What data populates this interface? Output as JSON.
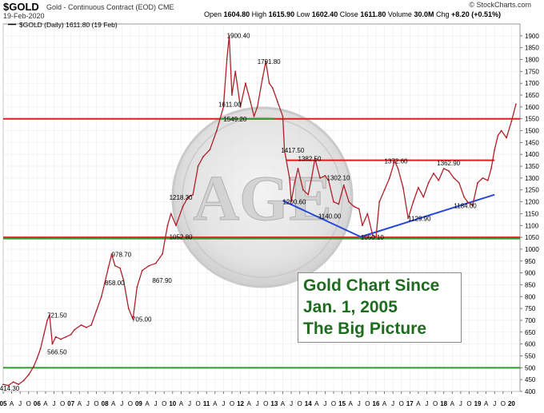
{
  "header": {
    "symbol": "$GOLD",
    "subtitle": "Gold - Continuous Contract (EOD)  CME",
    "date": "19-Feb-2020",
    "open_label": "Open",
    "open": "1604.80",
    "high_label": "High",
    "high": "1615.90",
    "low_label": "Low",
    "low": "1602.40",
    "close_label": "Close",
    "close": "1611.80",
    "volume_label": "Volume",
    "volume": "30.0M",
    "chg_label": "Chg",
    "chg": "+8.20 (+0.51%)",
    "brand": "© StockCharts.com"
  },
  "legend": "$GOLD (Daily) 1611.80 (19 Feb)",
  "callout": {
    "line1": "Gold Chart Since",
    "line2": "Jan. 1, 2005",
    "line3": "The Big Picture"
  },
  "watermark": "AGE",
  "colors": {
    "price": "#b0202a",
    "resistance": "#dd1f1f",
    "support": "#2f9a2f",
    "trend": "#2848d8",
    "callout_text": "#1f6b1f"
  },
  "chart_data": {
    "type": "line",
    "ylim": [
      400,
      1950
    ],
    "y_ticks": [
      400,
      450,
      500,
      550,
      600,
      650,
      700,
      750,
      800,
      850,
      900,
      950,
      1000,
      1050,
      1100,
      1150,
      1200,
      1250,
      1300,
      1350,
      1400,
      1450,
      1500,
      1550,
      1600,
      1650,
      1700,
      1750,
      1800,
      1850,
      1900
    ],
    "x_labels": [
      {
        "t": 2005.0,
        "label": "05",
        "bold": true
      },
      {
        "t": 2005.25,
        "label": "A"
      },
      {
        "t": 2005.5,
        "label": "J"
      },
      {
        "t": 2005.75,
        "label": "O"
      },
      {
        "t": 2006.0,
        "label": "06",
        "bold": true
      },
      {
        "t": 2006.25,
        "label": "A"
      },
      {
        "t": 2006.5,
        "label": "J"
      },
      {
        "t": 2006.75,
        "label": "O"
      },
      {
        "t": 2007.0,
        "label": "07",
        "bold": true
      },
      {
        "t": 2007.25,
        "label": "A"
      },
      {
        "t": 2007.5,
        "label": "J"
      },
      {
        "t": 2007.75,
        "label": "O"
      },
      {
        "t": 2008.0,
        "label": "08",
        "bold": true
      },
      {
        "t": 2008.25,
        "label": "A"
      },
      {
        "t": 2008.5,
        "label": "J"
      },
      {
        "t": 2008.75,
        "label": "O"
      },
      {
        "t": 2009.0,
        "label": "09",
        "bold": true
      },
      {
        "t": 2009.25,
        "label": "A"
      },
      {
        "t": 2009.5,
        "label": "J"
      },
      {
        "t": 2009.75,
        "label": "O"
      },
      {
        "t": 2010.0,
        "label": "10",
        "bold": true
      },
      {
        "t": 2010.25,
        "label": "A"
      },
      {
        "t": 2010.5,
        "label": "J"
      },
      {
        "t": 2010.75,
        "label": "O"
      },
      {
        "t": 2011.0,
        "label": "11",
        "bold": true
      },
      {
        "t": 2011.25,
        "label": "A"
      },
      {
        "t": 2011.5,
        "label": "J"
      },
      {
        "t": 2011.75,
        "label": "O"
      },
      {
        "t": 2012.0,
        "label": "12",
        "bold": true
      },
      {
        "t": 2012.25,
        "label": "A"
      },
      {
        "t": 2012.5,
        "label": "J"
      },
      {
        "t": 2012.75,
        "label": "O"
      },
      {
        "t": 2013.0,
        "label": "13",
        "bold": true
      },
      {
        "t": 2013.25,
        "label": "A"
      },
      {
        "t": 2013.5,
        "label": "J"
      },
      {
        "t": 2013.75,
        "label": "O"
      },
      {
        "t": 2014.0,
        "label": "14",
        "bold": true
      },
      {
        "t": 2014.25,
        "label": "A"
      },
      {
        "t": 2014.5,
        "label": "J"
      },
      {
        "t": 2014.75,
        "label": "O"
      },
      {
        "t": 2015.0,
        "label": "15",
        "bold": true
      },
      {
        "t": 2015.25,
        "label": "A"
      },
      {
        "t": 2015.5,
        "label": "J"
      },
      {
        "t": 2015.75,
        "label": "O"
      },
      {
        "t": 2016.0,
        "label": "16",
        "bold": true
      },
      {
        "t": 2016.25,
        "label": "A"
      },
      {
        "t": 2016.5,
        "label": "J"
      },
      {
        "t": 2016.75,
        "label": "O"
      },
      {
        "t": 2017.0,
        "label": "17",
        "bold": true
      },
      {
        "t": 2017.25,
        "label": "A"
      },
      {
        "t": 2017.5,
        "label": "J"
      },
      {
        "t": 2017.75,
        "label": "O"
      },
      {
        "t": 2018.0,
        "label": "18",
        "bold": true
      },
      {
        "t": 2018.25,
        "label": "A"
      },
      {
        "t": 2018.5,
        "label": "J"
      },
      {
        "t": 2018.75,
        "label": "O"
      },
      {
        "t": 2019.0,
        "label": "19",
        "bold": true
      },
      {
        "t": 2019.25,
        "label": "A"
      },
      {
        "t": 2019.5,
        "label": "J"
      },
      {
        "t": 2019.75,
        "label": "O"
      },
      {
        "t": 2020.0,
        "label": "20",
        "bold": true
      }
    ],
    "series": [
      {
        "x": [
          2005.0,
          2005.15,
          2005.3,
          2005.45,
          2005.6,
          2005.75,
          2005.9,
          2006.0,
          2006.1,
          2006.2,
          2006.3,
          2006.37,
          2006.45,
          2006.55,
          2006.7,
          2006.85,
          2007.0,
          2007.1,
          2007.3,
          2007.45,
          2007.6,
          2007.75,
          2007.9,
          2008.0,
          2008.1,
          2008.2,
          2008.3,
          2008.45,
          2008.55,
          2008.7,
          2008.83,
          2008.95,
          2009.1,
          2009.3,
          2009.5,
          2009.7,
          2009.85,
          2009.95,
          2010.1,
          2010.3,
          2010.45,
          2010.6,
          2010.75,
          2010.9,
          2011.1,
          2011.3,
          2011.5,
          2011.6,
          2011.67,
          2011.75,
          2011.85,
          2012.0,
          2012.15,
          2012.3,
          2012.4,
          2012.5,
          2012.65,
          2012.75,
          2012.85,
          2012.95,
          2013.1,
          2013.25,
          2013.3,
          2013.45,
          2013.5,
          2013.6,
          2013.7,
          2013.85,
          2014.0,
          2014.1,
          2014.2,
          2014.35,
          2014.5,
          2014.6,
          2014.75,
          2014.9,
          2015.05,
          2015.2,
          2015.35,
          2015.5,
          2015.6,
          2015.75,
          2015.9,
          2016.0,
          2016.1,
          2016.25,
          2016.4,
          2016.55,
          2016.65,
          2016.8,
          2016.95,
          2017.1,
          2017.25,
          2017.4,
          2017.55,
          2017.7,
          2017.85,
          2018.0,
          2018.15,
          2018.3,
          2018.45,
          2018.6,
          2018.7,
          2018.85,
          2019.0,
          2019.15,
          2019.3,
          2019.4,
          2019.5,
          2019.6,
          2019.7,
          2019.85,
          2020.0,
          2020.13
        ],
        "values": [
          430,
          425,
          440,
          430,
          445,
          470,
          505,
          540,
          580,
          640,
          700,
          721.5,
          600,
          630,
          620,
          630,
          640,
          660,
          680,
          670,
          680,
          740,
          800,
          860,
          920,
          978.7,
          930,
          920,
          870,
          750,
          705,
          840,
          910,
          930,
          940,
          980,
          1100,
          1150,
          1100,
          1180,
          1218.3,
          1230,
          1350,
          1390,
          1420,
          1500,
          1600,
          1800,
          1900.4,
          1650,
          1750,
          1600,
          1700,
          1620,
          1560,
          1600,
          1720,
          1791.8,
          1700,
          1680,
          1620,
          1560,
          1417.5,
          1300,
          1200.6,
          1280,
          1340,
          1250,
          1230,
          1300,
          1382.5,
          1300,
          1310,
          1290,
          1200,
          1190,
          1270,
          1200,
          1180,
          1170,
          1100,
          1150,
          1060,
          1050.1,
          1200,
          1250,
          1300,
          1372.6,
          1340,
          1260,
          1130,
          1200,
          1260,
          1220,
          1280,
          1320,
          1290,
          1340,
          1330,
          1300,
          1280,
          1220,
          1200,
          1184,
          1280,
          1300,
          1290,
          1340,
          1420,
          1480,
          1500,
          1470,
          1540,
          1611.8
        ],
        "name": "$GOLD (Daily)"
      }
    ],
    "annotations": [
      {
        "t": 2004.9,
        "v": 414.3,
        "label": "414.30"
      },
      {
        "t": 2006.3,
        "v": 721.5,
        "label": "721.50"
      },
      {
        "t": 2006.3,
        "v": 566.5,
        "label": "566.50"
      },
      {
        "t": 2008.2,
        "v": 978.7,
        "label": "978.70"
      },
      {
        "t": 2008.0,
        "v": 858.0,
        "label": "858.00"
      },
      {
        "t": 2008.8,
        "v": 705.0,
        "label": "705.00"
      },
      {
        "t": 2009.4,
        "v": 867.9,
        "label": "867.90"
      },
      {
        "t": 2009.9,
        "v": 1052.8,
        "label": "1052.80"
      },
      {
        "t": 2009.9,
        "v": 1218.3,
        "label": "1218.30"
      },
      {
        "t": 2011.6,
        "v": 1900.4,
        "label": "1900.40"
      },
      {
        "t": 2011.35,
        "v": 1611.0,
        "label": "1611.00"
      },
      {
        "t": 2011.5,
        "v": 1549.2,
        "label": "1549.20"
      },
      {
        "t": 2012.5,
        "v": 1791.8,
        "label": "1791.80"
      },
      {
        "t": 2013.2,
        "v": 1417.5,
        "label": "1417.50"
      },
      {
        "t": 2013.7,
        "v": 1382.5,
        "label": "1382.50"
      },
      {
        "t": 2014.55,
        "v": 1302.1,
        "label": "1302.10"
      },
      {
        "t": 2013.25,
        "v": 1200.6,
        "label": "1200.60"
      },
      {
        "t": 2014.3,
        "v": 1140.0,
        "label": "1140.00"
      },
      {
        "t": 2015.55,
        "v": 1050.1,
        "label": "1050.10"
      },
      {
        "t": 2016.25,
        "v": 1372.6,
        "label": "1372.60"
      },
      {
        "t": 2016.95,
        "v": 1129.9,
        "label": "1129.90"
      },
      {
        "t": 2017.8,
        "v": 1362.9,
        "label": "1362.90"
      },
      {
        "t": 2018.3,
        "v": 1184.0,
        "label": "1184.00"
      }
    ],
    "resistance_lines": [
      {
        "value": 1550,
        "from": 2005.0,
        "to": 2020.25,
        "color": "#dd1f1f"
      },
      {
        "value": 1375,
        "from": 2013.35,
        "to": 2019.5,
        "color": "#dd1f1f"
      },
      {
        "value": 1050,
        "from": 2005.0,
        "to": 2020.25,
        "color": "#dd1f1f"
      }
    ],
    "support_lines": [
      {
        "value": 1550,
        "from": 2011.4,
        "to": 2013.0,
        "color": "#2f9a2f"
      },
      {
        "value": 1045,
        "from": 2005.0,
        "to": 2020.25,
        "color": "#2f9a2f"
      },
      {
        "value": 500,
        "from": 2005.0,
        "to": 2020.25,
        "color": "#2f9a2f"
      }
    ],
    "trend_lines": [
      {
        "x1": 2013.25,
        "y1": 1205,
        "x2": 2015.55,
        "y2": 1052,
        "color": "#2848d8"
      },
      {
        "x1": 2015.55,
        "y1": 1052,
        "x2": 2019.5,
        "y2": 1230,
        "color": "#2848d8"
      }
    ]
  }
}
